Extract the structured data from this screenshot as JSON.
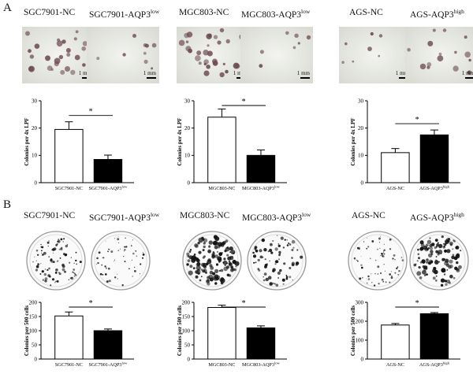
{
  "figure": {
    "panel_a": {
      "letter": "A",
      "conditions": [
        {
          "label": "SGC7901-NC"
        },
        {
          "label": "SGC7901-AQP3",
          "sup": "low"
        },
        {
          "label": "MGC803-NC"
        },
        {
          "label": "MGC803-AQP3",
          "sup": "low"
        },
        {
          "label": "AGS-NC"
        },
        {
          "label": "AGS-AQP3",
          "sup": "high"
        }
      ],
      "scale_bar_label": "1 mm"
    },
    "panel_b": {
      "letter": "B",
      "conditions": [
        {
          "label": "SGC7901-NC"
        },
        {
          "label": "SGC7901-AQP3",
          "sup": "low"
        },
        {
          "label": "MGC803-NC"
        },
        {
          "label": "MGC803-AQP3",
          "sup": "low"
        },
        {
          "label": "AGS-NC"
        },
        {
          "label": "AGS-AQP3",
          "sup": "high"
        }
      ]
    }
  },
  "colors": {
    "micro_bg": "#e6e8e1",
    "colony": "#6e4c52",
    "bar_control": "#ffffff",
    "bar_treated": "#000000"
  },
  "chart_data": [
    {
      "id": "a1",
      "type": "bar",
      "title": "",
      "ylabel": "Colonies per 4x LPF",
      "ylim": [
        0,
        30
      ],
      "yticks": [
        0,
        10,
        20,
        30
      ],
      "categories": [
        {
          "label": "SGC7901-NC"
        },
        {
          "label": "SGC7901-AQP3",
          "sup": "low"
        }
      ],
      "values": [
        19.5,
        8.5
      ],
      "errors": [
        2.8,
        1.6
      ],
      "significance": "*"
    },
    {
      "id": "a2",
      "type": "bar",
      "title": "",
      "ylabel": "Colonies per 4x LPF",
      "ylim": [
        0,
        30
      ],
      "yticks": [
        0,
        10,
        20,
        30
      ],
      "categories": [
        {
          "label": "MGC803-NC"
        },
        {
          "label": "MGC803-AQP3",
          "sup": "low"
        }
      ],
      "values": [
        24,
        10
      ],
      "errors": [
        3,
        2
      ],
      "significance": "*"
    },
    {
      "id": "a3",
      "type": "bar",
      "title": "",
      "ylabel": "Colonies per 4x LPF",
      "ylim": [
        0,
        30
      ],
      "yticks": [
        0,
        10,
        20,
        30
      ],
      "categories": [
        {
          "label": "AGS-NC"
        },
        {
          "label": "AGS-AQP3",
          "sup": "high"
        }
      ],
      "values": [
        11,
        17.5
      ],
      "errors": [
        1.5,
        1.8
      ],
      "significance": "*"
    },
    {
      "id": "b1",
      "type": "bar",
      "title": "",
      "ylabel": "Colonies per 500 cells",
      "ylim": [
        0,
        200
      ],
      "yticks": [
        0,
        50,
        100,
        150,
        200
      ],
      "categories": [
        {
          "label": "SGC7901-NC"
        },
        {
          "label": "SGC7901-AQP3",
          "sup": "low"
        }
      ],
      "values": [
        152,
        100
      ],
      "errors": [
        14,
        6
      ],
      "significance": "*"
    },
    {
      "id": "b2",
      "type": "bar",
      "title": "",
      "ylabel": "Colonies per 500 cells",
      "ylim": [
        0,
        200
      ],
      "yticks": [
        0,
        50,
        100,
        150,
        200
      ],
      "categories": [
        {
          "label": "MGC803-NC"
        },
        {
          "label": "MGC803-AQP3",
          "sup": "low"
        }
      ],
      "values": [
        182,
        110
      ],
      "errors": [
        8,
        7
      ],
      "significance": "*"
    },
    {
      "id": "b3",
      "type": "bar",
      "title": "",
      "ylabel": "Colonies per 500 cells",
      "ylim": [
        0,
        300
      ],
      "yticks": [
        0,
        100,
        200,
        300
      ],
      "categories": [
        {
          "label": "AGS-NC"
        },
        {
          "label": "AGS-AQP3",
          "sup": "high"
        }
      ],
      "values": [
        180,
        240
      ],
      "errors": [
        8,
        6
      ],
      "significance": "*"
    }
  ]
}
